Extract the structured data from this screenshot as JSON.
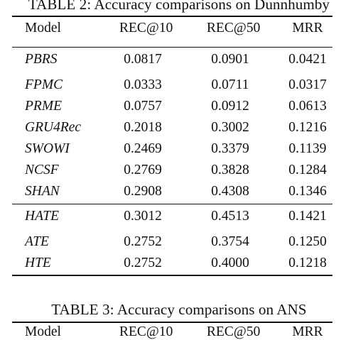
{
  "table2": {
    "caption": "TABLE 2: Accuracy comparisons on Dunnhumby",
    "headers": [
      "Model",
      "REC@10",
      "REC@50",
      "MRR"
    ],
    "group1": [
      {
        "model": "PBRS",
        "rec10": "0.0817",
        "rec50": "0.0901",
        "mrr": "0.0421"
      },
      {
        "model": "FPMC",
        "rec10": "0.0333",
        "rec50": "0.0711",
        "mrr": "0.0317"
      },
      {
        "model": "PRME",
        "rec10": "0.0757",
        "rec50": "0.0912",
        "mrr": "0.0613"
      },
      {
        "model": "GRU4Rec",
        "rec10": "0.2018",
        "rec50": "0.3002",
        "mrr": "0.1216"
      },
      {
        "model": "SWOWI",
        "rec10": "0.2469",
        "rec50": "0.3379",
        "mrr": "0.1139"
      },
      {
        "model": "NCSF",
        "rec10": "0.2769",
        "rec50": "0.3828",
        "mrr": "0.1284"
      },
      {
        "model": "SHAN",
        "rec10": "0.2908",
        "rec50": "0.4308",
        "mrr": "0.1346"
      }
    ],
    "group2": [
      {
        "model": "HATE",
        "rec10": "0.3012",
        "rec50": "0.4513",
        "mrr": "0.1421"
      },
      {
        "model": "ATE",
        "rec10": "0.2752",
        "rec50": "0.3754",
        "mrr": "0.1250"
      },
      {
        "model": "HTE",
        "rec10": "0.2752",
        "rec50": "0.4000",
        "mrr": "0.1218"
      }
    ]
  },
  "table3": {
    "caption": "TABLE 3: Accuracy comparisons on ANS",
    "headers": [
      "Model",
      "REC@10",
      "REC@50",
      "MRR"
    ]
  }
}
